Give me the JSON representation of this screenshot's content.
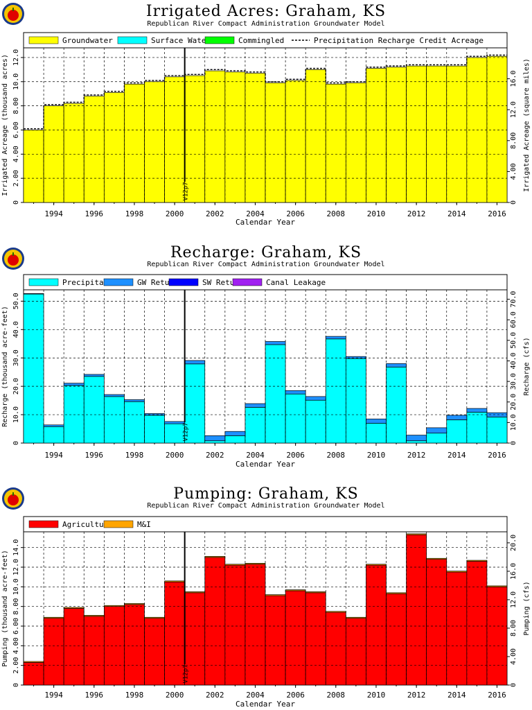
{
  "chart_data": [
    {
      "type": "bar",
      "title": "Irrigated Acres: Graham, KS",
      "subtitle": "Republican River Compact Administration Groundwater Model",
      "xlabel": "Calendar Year",
      "ylabel": "Irrigated Acreage (thousand acres)",
      "ylabel_right": "Irrigated Acreage (square miles)",
      "marker_label": "V12p7",
      "marker_year": 2000.5,
      "xlim": [
        1992.5,
        2016.5
      ],
      "ylim": [
        0,
        12.8
      ],
      "y_ticks": [
        "0",
        "2.00",
        "4.00",
        "6.00",
        "8.00",
        "10.0",
        "12.0"
      ],
      "y_right_ticks": [
        "0",
        "4.00",
        "8.00",
        "12.0",
        "16.0"
      ],
      "y_right_scale": 1.5625,
      "x_tick_labels": [
        "1994",
        "1996",
        "1998",
        "2000",
        "2002",
        "2004",
        "2006",
        "2008",
        "2010",
        "2012",
        "2014",
        "2016"
      ],
      "grid": true,
      "legend": [
        "Groundwater",
        "Surface Water",
        "Commingled",
        "Precipitation Recharge Credit Acreage"
      ],
      "colors": {
        "Groundwater": "#ffff00",
        "Surface Water": "#00ffff",
        "Commingled": "#00ff00",
        "Precipitation Recharge Credit Acreage": "#000000"
      },
      "x": [
        1993,
        1994,
        1995,
        1996,
        1997,
        1998,
        1999,
        2000,
        2001,
        2002,
        2003,
        2004,
        2005,
        2006,
        2007,
        2008,
        2009,
        2010,
        2011,
        2012,
        2013,
        2014,
        2015,
        2016
      ],
      "series": [
        {
          "name": "Groundwater",
          "values": [
            6.0,
            8.0,
            8.2,
            8.8,
            9.1,
            9.8,
            10.0,
            10.4,
            10.5,
            10.9,
            10.8,
            10.7,
            9.9,
            10.1,
            11.0,
            9.8,
            9.9,
            11.1,
            11.2,
            11.3,
            11.3,
            11.3,
            12.0,
            12.1
          ]
        },
        {
          "name": "Surface Water",
          "values": [
            0,
            0,
            0,
            0,
            0,
            0,
            0,
            0,
            0,
            0,
            0,
            0,
            0,
            0,
            0,
            0,
            0,
            0,
            0,
            0,
            0,
            0,
            0,
            0
          ]
        },
        {
          "name": "Commingled",
          "values": [
            0,
            0,
            0,
            0,
            0,
            0,
            0,
            0,
            0,
            0,
            0,
            0,
            0,
            0,
            0,
            0,
            0,
            0,
            0,
            0,
            0,
            0,
            0,
            0
          ]
        },
        {
          "name": "Precipitation Recharge Credit Acreage",
          "values": [
            6.1,
            8.1,
            8.3,
            8.9,
            9.2,
            9.9,
            10.1,
            10.5,
            10.6,
            11.0,
            10.9,
            10.8,
            10.0,
            10.2,
            11.1,
            9.9,
            10.0,
            11.2,
            11.3,
            11.4,
            11.4,
            11.4,
            12.1,
            12.2
          ]
        }
      ]
    },
    {
      "type": "bar",
      "title": "Recharge: Graham, KS",
      "subtitle": "Republican River Compact Administration Groundwater Model",
      "xlabel": "Calendar Year",
      "ylabel": "Recharge (thousand acre-feet)",
      "ylabel_right": "Recharge (cfs)",
      "marker_label": "V12p7",
      "marker_year": 2000.5,
      "xlim": [
        1992.5,
        2016.5
      ],
      "ylim": [
        0,
        54
      ],
      "y_ticks": [
        "0",
        "10.0",
        "20.0",
        "30.0",
        "40.0",
        "50.0"
      ],
      "y_right_ticks": [
        "0",
        "10.0",
        "20.0",
        "30.0",
        "40.0",
        "50.0",
        "60.0",
        "70.0"
      ],
      "y_right_scale": 1.3814,
      "x_tick_labels": [
        "1994",
        "1996",
        "1998",
        "2000",
        "2002",
        "2004",
        "2006",
        "2008",
        "2010",
        "2012",
        "2014",
        "2016"
      ],
      "grid": true,
      "legend": [
        "Precipitation",
        "GW Returns",
        "SW Returns",
        "Canal Leakage"
      ],
      "colors": {
        "Precipitation": "#00ffff",
        "GW Returns": "#1e90ff",
        "SW Returns": "#0000ff",
        "Canal Leakage": "#a020f0"
      },
      "x": [
        1993,
        1994,
        1995,
        1996,
        1997,
        1998,
        1999,
        2000,
        2001,
        2002,
        2003,
        2004,
        2005,
        2006,
        2007,
        2008,
        2009,
        2010,
        2011,
        2012,
        2013,
        2014,
        2015,
        2016
      ],
      "series": [
        {
          "name": "Precipitation",
          "values": [
            52.5,
            5.8,
            20.3,
            23.5,
            16.4,
            14.6,
            9.8,
            6.8,
            27.9,
            0.8,
            2.6,
            12.6,
            34.7,
            17.3,
            15.1,
            36.7,
            29.8,
            7.0,
            26.8,
            0.8,
            3.5,
            8.2,
            10.9,
            9.2
          ]
        },
        {
          "name": "GW Returns",
          "values": [
            0.2,
            0.6,
            0.8,
            0.7,
            0.7,
            0.7,
            0.6,
            0.8,
            1.2,
            1.8,
            1.5,
            1.3,
            1.1,
            1.2,
            1.3,
            0.9,
            0.7,
            1.5,
            1.2,
            2.0,
            1.9,
            1.6,
            1.3,
            1.5
          ]
        },
        {
          "name": "SW Returns",
          "values": [
            0,
            0,
            0,
            0,
            0,
            0,
            0,
            0,
            0,
            0,
            0,
            0,
            0,
            0,
            0,
            0,
            0,
            0,
            0,
            0,
            0,
            0,
            0,
            0
          ]
        },
        {
          "name": "Canal Leakage",
          "values": [
            0,
            0,
            0,
            0,
            0,
            0,
            0,
            0,
            0,
            0,
            0,
            0,
            0,
            0,
            0,
            0,
            0,
            0,
            0,
            0,
            0,
            0,
            0,
            0
          ]
        }
      ]
    },
    {
      "type": "bar",
      "title": "Pumping: Graham, KS",
      "subtitle": "Republican River Compact Administration Groundwater Model",
      "xlabel": "Calendar Year",
      "ylabel": "Pumping (thousand acre-feet)",
      "ylabel_right": "Pumping (cfs)",
      "marker_label": "V12p7",
      "marker_year": 2000.5,
      "xlim": [
        1992.5,
        2016.5
      ],
      "ylim": [
        0,
        15.6
      ],
      "y_ticks": [
        "0",
        "2.00",
        "4.00",
        "6.00",
        "8.00",
        "10.0",
        "12.0",
        "14.0"
      ],
      "y_right_ticks": [
        "0",
        "4.00",
        "8.00",
        "12.0",
        "16.0",
        "20.0"
      ],
      "y_right_scale": 1.3814,
      "x_tick_labels": [
        "1994",
        "1996",
        "1998",
        "2000",
        "2002",
        "2004",
        "2006",
        "2008",
        "2010",
        "2012",
        "2014",
        "2016"
      ],
      "grid": true,
      "legend": [
        "Agricultural",
        "M&I"
      ],
      "colors": {
        "Agricultural": "#ff0000",
        "M&I": "#ffa500"
      },
      "x": [
        1993,
        1994,
        1995,
        1996,
        1997,
        1998,
        1999,
        2000,
        2001,
        2002,
        2003,
        2004,
        2005,
        2006,
        2007,
        2008,
        2009,
        2010,
        2011,
        2012,
        2013,
        2014,
        2015,
        2016
      ],
      "series": [
        {
          "name": "Agricultural",
          "values": [
            2.3,
            6.8,
            7.8,
            7.0,
            8.0,
            8.2,
            6.8,
            10.5,
            9.4,
            13.0,
            12.2,
            12.3,
            9.1,
            9.6,
            9.4,
            7.4,
            6.8,
            12.2,
            9.3,
            15.3,
            12.8,
            11.5,
            12.6,
            10.0
          ]
        },
        {
          "name": "M&I",
          "values": [
            0.1,
            0.1,
            0.1,
            0.1,
            0.1,
            0.1,
            0.1,
            0.1,
            0.1,
            0.1,
            0.1,
            0.1,
            0.1,
            0.1,
            0.1,
            0.1,
            0.1,
            0.1,
            0.1,
            0.1,
            0.1,
            0.1,
            0.1,
            0.1
          ]
        }
      ]
    }
  ]
}
